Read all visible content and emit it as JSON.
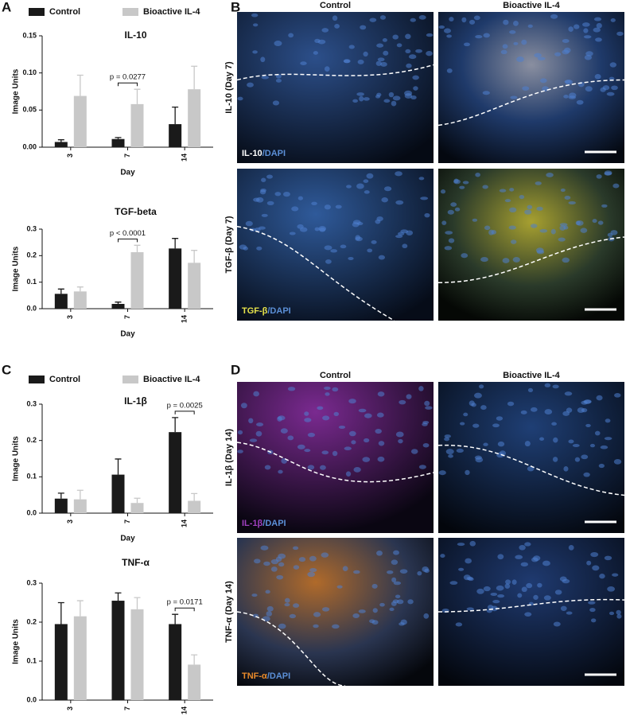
{
  "chart_data": [
    {
      "type": "bar",
      "title": "IL-10",
      "xlabel": "Day",
      "ylabel": "Image Units",
      "legend": true,
      "categories": [
        "3",
        "7",
        "14"
      ],
      "series": [
        {
          "name": "Control",
          "color": "#1a1a1a",
          "values": [
            0.007,
            0.011,
            0.031
          ],
          "errors": [
            0.003,
            0.002,
            0.023
          ]
        },
        {
          "name": "Bioactive IL-4",
          "color": "#c8c8c8",
          "values": [
            0.069,
            0.058,
            0.078
          ],
          "errors": [
            0.028,
            0.02,
            0.031
          ]
        }
      ],
      "ylim": [
        0,
        0.15
      ],
      "yticks": [
        {
          "value": 0,
          "label": "0.00"
        },
        {
          "value": 0.05,
          "label": "0.05"
        },
        {
          "value": 0.1,
          "label": "0.10"
        },
        {
          "value": 0.15,
          "label": "0.15"
        }
      ],
      "annotations": [
        {
          "text": "p = 0.0277",
          "category": 1
        }
      ]
    },
    {
      "type": "bar",
      "title": "TGF-beta",
      "xlabel": "Day",
      "ylabel": "Image Units",
      "legend": false,
      "categories": [
        "3",
        "7",
        "14"
      ],
      "series": [
        {
          "color": "#1a1a1a",
          "values": [
            0.056,
            0.018,
            0.227
          ],
          "errors": [
            0.018,
            0.007,
            0.038
          ]
        },
        {
          "color": "#c8c8c8",
          "values": [
            0.065,
            0.213,
            0.173
          ],
          "errors": [
            0.017,
            0.026,
            0.047
          ]
        }
      ],
      "ylim": [
        0,
        0.3
      ],
      "yticks": [
        {
          "value": 0,
          "label": "0.0"
        },
        0.1,
        0.2,
        0.3
      ],
      "annotations": [
        {
          "text": "p < 0.0001",
          "category": 1
        }
      ]
    },
    {
      "type": "bar",
      "title": "IL-1β",
      "xlabel": "Day",
      "ylabel": "Image Units",
      "legend": true,
      "categories": [
        "3",
        "7",
        "14"
      ],
      "series": [
        {
          "name": "Control",
          "color": "#1a1a1a",
          "values": [
            0.04,
            0.106,
            0.223
          ],
          "errors": [
            0.015,
            0.043,
            0.04
          ]
        },
        {
          "name": "Bioactive IL-4",
          "color": "#c8c8c8",
          "values": [
            0.038,
            0.028,
            0.034
          ],
          "errors": [
            0.025,
            0.013,
            0.02
          ]
        }
      ],
      "ylim": [
        0,
        0.3
      ],
      "yticks": [
        {
          "value": 0,
          "label": "0.0"
        },
        0.1,
        0.2,
        0.3
      ],
      "annotations": [
        {
          "text": "p = 0.0025",
          "category": 2
        }
      ]
    },
    {
      "type": "bar",
      "title": "TNF-α",
      "xlabel": "Day",
      "ylabel": "Image Units",
      "legend": false,
      "categories": [
        "3",
        "7",
        "14"
      ],
      "series": [
        {
          "color": "#1a1a1a",
          "values": [
            0.195,
            0.255,
            0.195
          ],
          "errors": [
            0.055,
            0.02,
            0.025
          ]
        },
        {
          "color": "#c8c8c8",
          "values": [
            0.215,
            0.233,
            0.091
          ],
          "errors": [
            0.04,
            0.03,
            0.025
          ]
        }
      ],
      "ylim": [
        0,
        0.3
      ],
      "yticks": [
        {
          "value": 0,
          "label": "0.0"
        },
        0.1,
        0.2,
        0.3
      ],
      "annotations": [
        {
          "text": "p = 0.0171",
          "category": 2
        }
      ]
    }
  ],
  "panel_labels": [
    "A",
    "B",
    "C",
    "D"
  ],
  "micrographs": [
    {
      "columns": [
        "Control",
        "Bioactive IL-4"
      ],
      "rows": [
        {
          "label": "IL-10 (Day 7)",
          "stain": [
            {
              "text": "IL-10",
              "color": "#ffffff"
            },
            {
              "text": "/DAPI",
              "color": "#5b8fd6"
            }
          ]
        },
        {
          "label": "TGF-β (Day 7)",
          "stain": [
            {
              "text": "TGF-β",
              "color": "#e6e24a"
            },
            {
              "text": "/DAPI",
              "color": "#5b8fd6"
            }
          ]
        }
      ]
    },
    {
      "columns": [
        "Control",
        "Bioactive IL-4"
      ],
      "rows": [
        {
          "label": "IL-1β (Day 14)",
          "stain": [
            {
              "text": "IL-1β",
              "color": "#a040c0"
            },
            {
              "text": "/DAPI",
              "color": "#5b8fd6"
            }
          ]
        },
        {
          "label": "TNF-α (Day 14)",
          "stain": [
            {
              "text": "TNF-α",
              "color": "#e88a2a"
            },
            {
              "text": "/DAPI",
              "color": "#5b8fd6"
            }
          ]
        }
      ]
    }
  ]
}
